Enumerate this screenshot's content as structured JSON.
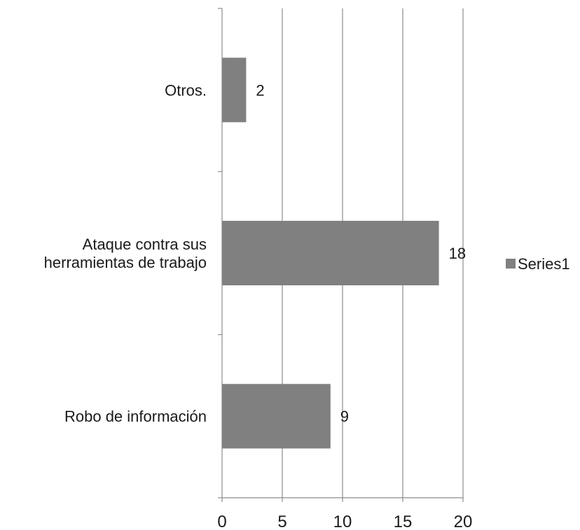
{
  "chart_data": {
    "type": "bar",
    "orientation": "horizontal",
    "categories": [
      "Otros.",
      "Ataque contra sus herramientas de trabajo",
      "Robo de información"
    ],
    "category_lines": [
      [
        "Otros."
      ],
      [
        "Ataque contra sus",
        "herramientas de trabajo"
      ],
      [
        "Robo de información"
      ]
    ],
    "series": [
      {
        "name": "Series1",
        "values": [
          2,
          18,
          9
        ],
        "color": "#808080"
      }
    ],
    "data_labels": [
      "2",
      "18",
      "9"
    ],
    "xlim": [
      0,
      20
    ],
    "x_ticks": [
      0,
      5,
      10,
      15,
      20
    ],
    "x_tick_labels": [
      "0",
      "5",
      "10",
      "15",
      "20"
    ],
    "grid": "vertical",
    "legend_position": "right"
  },
  "legend": {
    "label": "Series1",
    "marker_color": "#808080"
  }
}
